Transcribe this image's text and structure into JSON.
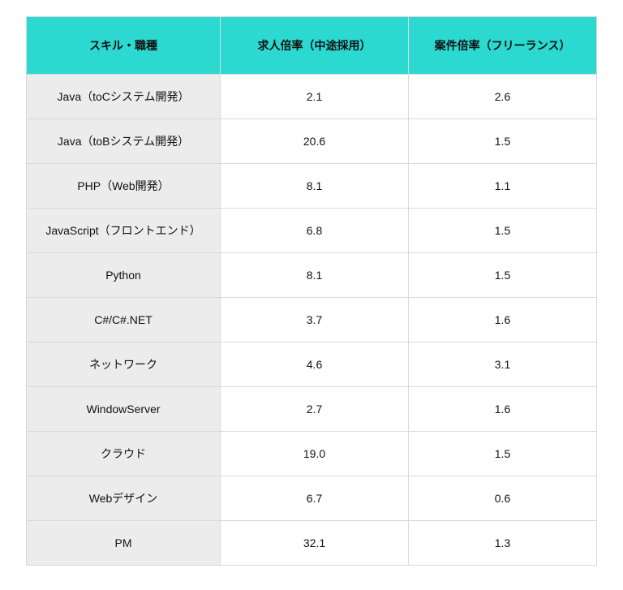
{
  "table": {
    "header_bg": "#2bd9d0",
    "skill_col_bg": "#ececec",
    "value_col_bg": "#ffffff",
    "columns": [
      "スキル・職種",
      "求人倍率（中途採用）",
      "案件倍率（フリーランス）"
    ],
    "col_widths_pct": [
      34,
      33,
      33
    ],
    "rows": [
      {
        "skill": "Java（toCシステム開発）",
        "mid": "2.1",
        "free": "2.6"
      },
      {
        "skill": "Java（toBシステム開発）",
        "mid": "20.6",
        "free": "1.5"
      },
      {
        "skill": "PHP（Web開発）",
        "mid": "8.1",
        "free": "1.1"
      },
      {
        "skill": "JavaScript（フロントエンド）",
        "mid": "6.8",
        "free": "1.5"
      },
      {
        "skill": "Python",
        "mid": "8.1",
        "free": "1.5"
      },
      {
        "skill": "C#/C#.NET",
        "mid": "3.7",
        "free": "1.6"
      },
      {
        "skill": "ネットワーク",
        "mid": "4.6",
        "free": "3.1"
      },
      {
        "skill": "WindowServer",
        "mid": "2.7",
        "free": "1.6"
      },
      {
        "skill": "クラウド",
        "mid": "19.0",
        "free": "1.5"
      },
      {
        "skill": "Webデザイン",
        "mid": "6.7",
        "free": "0.6"
      },
      {
        "skill": "PM",
        "mid": "32.1",
        "free": "1.3"
      }
    ]
  }
}
